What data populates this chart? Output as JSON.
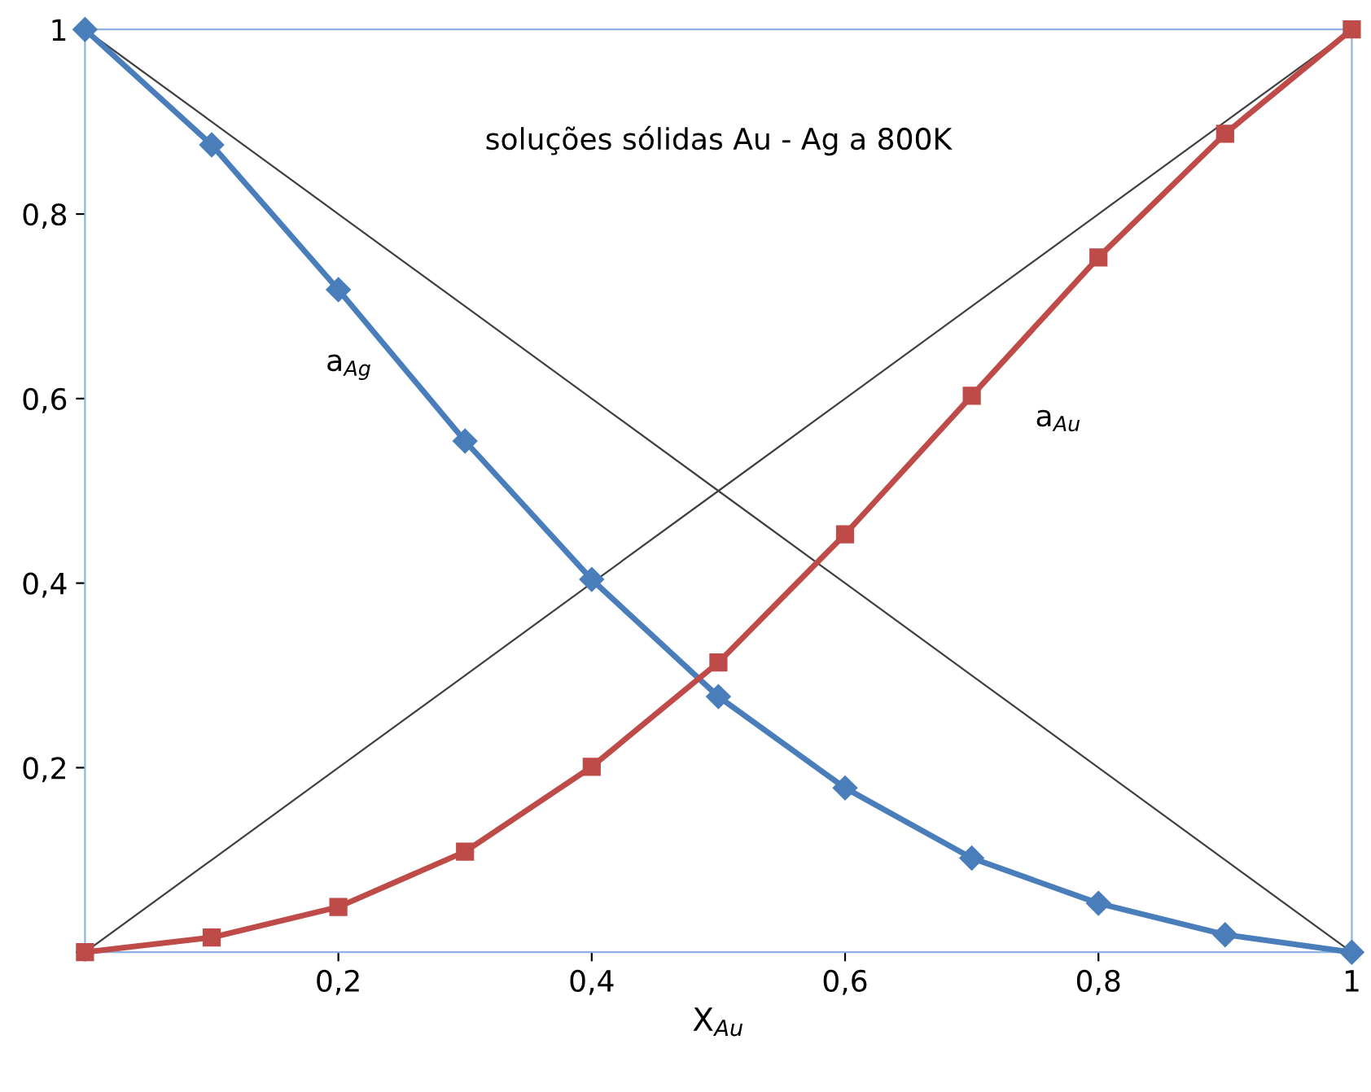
{
  "chart_data": {
    "type": "line",
    "title": "soluções sólidas Au - Ag a 800K",
    "xlabel": "X$_{Au}$",
    "x": [
      0,
      0.1,
      0.2,
      0.3,
      0.4,
      0.5,
      0.6,
      0.7,
      0.8,
      0.9,
      1
    ],
    "series": [
      {
        "color": "#4a7ebb",
        "marker": "diamond",
        "values": [
          1,
          0.875,
          0.718,
          0.554,
          0.404,
          0.277,
          0.178,
          0.102,
          0.053,
          0.019,
          0
        ]
      },
      {
        "color": "#be4b48",
        "marker": "square",
        "values": [
          0,
          0.016,
          0.049,
          0.109,
          0.201,
          0.314,
          0.453,
          0.603,
          0.753,
          0.887,
          1
        ]
      },
      {
        "color": "#404040",
        "marker": "none",
        "values": [
          1,
          0.9,
          0.8,
          0.7,
          0.6,
          0.5,
          0.4,
          0.3,
          0.2,
          0.1,
          0
        ]
      },
      {
        "color": "#404040",
        "marker": "none",
        "values": [
          0,
          0.1,
          0.2,
          0.3,
          0.4,
          0.5,
          0.6,
          0.7,
          0.8,
          0.9,
          1
        ]
      }
    ],
    "annotations": [
      "a$_{Ag}$",
      "a$_{Au}$"
    ],
    "xlim": [
      0,
      1
    ],
    "ylim": [
      0,
      1
    ],
    "xticks": [
      {
        "value": 0,
        "label": null
      },
      {
        "value": 0.2,
        "label": "0,2"
      },
      {
        "value": 0.4,
        "label": "0,4"
      },
      {
        "value": 0.6,
        "label": "0,6"
      },
      {
        "value": 0.8,
        "label": "0,8"
      },
      1
    ],
    "yticks": [
      {
        "value": 0,
        "label": null
      },
      {
        "value": 0.2,
        "label": "0,2"
      },
      {
        "value": 0.4,
        "label": "0,4"
      },
      {
        "value": 0.6,
        "label": "0,6"
      },
      {
        "value": 0.8,
        "label": "0,8"
      },
      1
    ],
    "grid": false,
    "legend": false,
    "line_style": "solid"
  }
}
